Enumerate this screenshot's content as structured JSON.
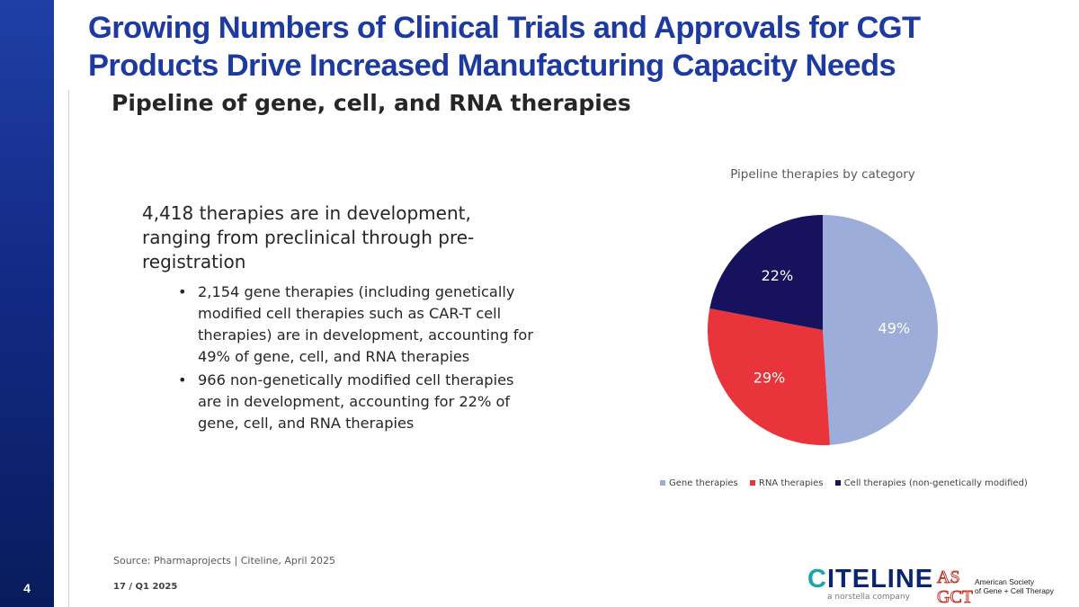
{
  "slide": {
    "number": "4",
    "code": "17 / Q1 2025"
  },
  "header": {
    "title_line1": "Growing Numbers of Clinical Trials and Approvals for CGT",
    "title_line2": "Products Drive Increased Manufacturing Capacity Needs"
  },
  "content": {
    "subtitle": "Pipeline of gene, cell, and RNA therapies",
    "intro": "4,418 therapies are in development, ranging from preclinical through pre-registration",
    "bullets": [
      "2,154 gene therapies (including genetically modified cell therapies such as CAR-T cell therapies) are in development, accounting for 49% of gene, cell, and RNA therapies",
      "966 non-genetically modified cell therapies are in development, accounting for 22% of gene, cell, and RNA therapies"
    ],
    "bullet_symbol": "•"
  },
  "chart_data": {
    "type": "pie",
    "title": "Pipeline therapies by category",
    "categories": [
      "Gene therapies",
      "RNA therapies",
      "Cell therapies (non-genetically modified)"
    ],
    "values": [
      49,
      29,
      22
    ],
    "data_labels": [
      "49%",
      "29%",
      "22%"
    ],
    "colors": [
      "#9cadd9",
      "#e8343a",
      "#17125e"
    ],
    "label_colors": [
      "#ffffff",
      "#ffffff",
      "#ffffff"
    ],
    "legend_position": "bottom",
    "start_angle_deg": 0,
    "direction": "clockwise"
  },
  "footer": {
    "source": "Source: Pharmaprojects | Citeline, April 2025",
    "citeline_brand": "CITELINE",
    "citeline_tagline": "a norstella company",
    "asgct_line1": "American Society",
    "asgct_line2": "of Gene + Cell Therapy"
  },
  "theme": {
    "title_color": "#1d3aa0",
    "sidebar_color": "#132a86"
  }
}
